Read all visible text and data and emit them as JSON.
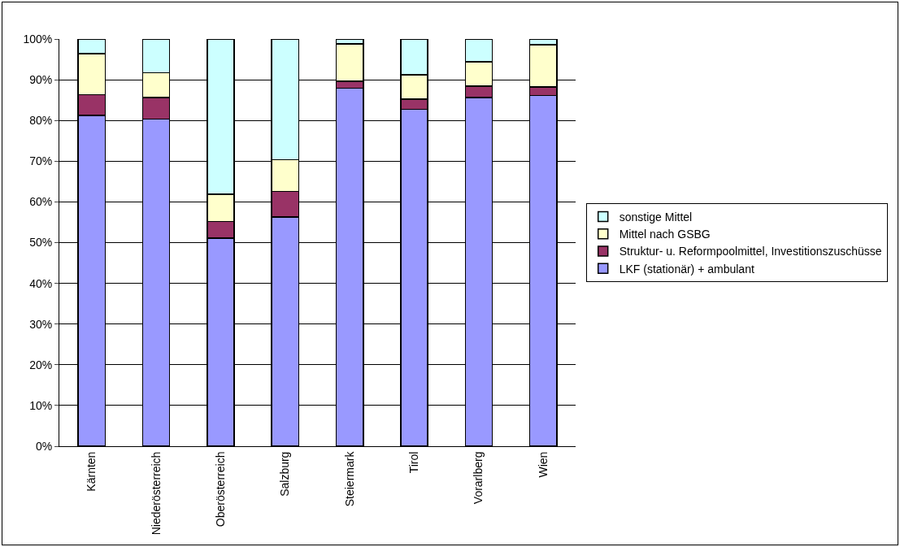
{
  "chart_data": {
    "type": "bar",
    "stacked": true,
    "categories": [
      "Kärnten",
      "Niederösterreich",
      "Oberösterreich",
      "Salzburg",
      "Steiermark",
      "Tirol",
      "Vorarlberg",
      "Wien"
    ],
    "series": [
      {
        "name": "LKF (stationär) + ambulant",
        "color": "#9999ff",
        "values": [
          81.2,
          80.3,
          51.1,
          56.3,
          87.9,
          82.7,
          85.6,
          86.1
        ]
      },
      {
        "name": "Struktur- u. Reformpoolmittel, Investitionszuschüsse",
        "color": "#993366",
        "values": [
          5.1,
          5.3,
          4.1,
          6.3,
          1.7,
          2.5,
          2.8,
          2.1
        ]
      },
      {
        "name": "Mittel nach GSBG",
        "color": "#ffffcc",
        "values": [
          10.1,
          6.1,
          6.7,
          7.8,
          9.2,
          6.0,
          6.0,
          10.4
        ]
      },
      {
        "name": "sonstige Mittel",
        "color": "#ccffff",
        "values": [
          3.6,
          8.3,
          38.1,
          29.6,
          1.2,
          8.8,
          5.6,
          1.4
        ]
      }
    ],
    "ylim": [
      0,
      100
    ],
    "yticks": [
      {
        "value": 0,
        "label": "0%"
      },
      {
        "value": 10,
        "label": "10%"
      },
      {
        "value": 20,
        "label": "20%"
      },
      {
        "value": 30,
        "label": "30%"
      },
      {
        "value": 40,
        "label": "40%"
      },
      {
        "value": 50,
        "label": "50%"
      },
      {
        "value": 60,
        "label": "60%"
      },
      {
        "value": 70,
        "label": "70%"
      },
      {
        "value": 80,
        "label": "80%"
      },
      {
        "value": 90,
        "label": "90%"
      },
      {
        "value": 100,
        "label": "100%"
      }
    ],
    "grid": "y",
    "legend": "right"
  }
}
